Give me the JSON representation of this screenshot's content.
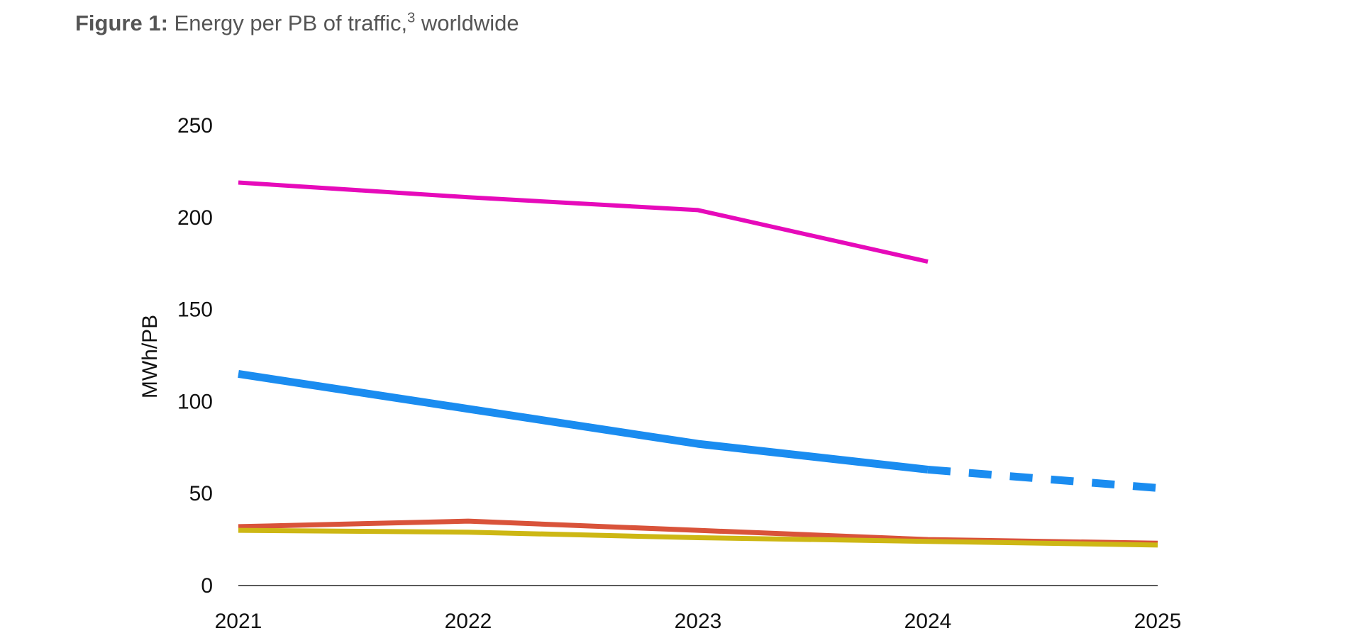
{
  "figure": {
    "label": "Figure 1:",
    "caption": "Energy per PB of traffic,",
    "footnote": "3",
    "caption_tail": "worldwide"
  },
  "chart_data": {
    "type": "line",
    "title": "",
    "xlabel": "",
    "ylabel": "MWh/PB",
    "categories": [
      "2021",
      "2022",
      "2023",
      "2024",
      "2025"
    ],
    "yticks": [
      "0",
      "50",
      "100",
      "150",
      "200",
      "250"
    ],
    "ylim": [
      0,
      250
    ],
    "grid": false,
    "legend": "none",
    "series": [
      {
        "color": "#e60aba",
        "width": 6,
        "segments": [
          {
            "style": "solid",
            "points": [
              [
                "2021",
                219
              ],
              [
                "2022",
                211
              ],
              [
                "2023",
                204
              ],
              [
                "2024",
                176
              ]
            ]
          }
        ]
      },
      {
        "color": "#1a8cf0",
        "width": 11,
        "segments": [
          {
            "style": "solid",
            "points": [
              [
                "2021",
                115
              ],
              [
                "2022",
                96
              ],
              [
                "2023",
                77
              ],
              [
                "2024",
                63
              ]
            ]
          },
          {
            "style": "dashed",
            "points": [
              [
                "2024",
                63
              ],
              [
                "2025",
                53
              ]
            ]
          }
        ]
      },
      {
        "color": "#d9533a",
        "width": 7,
        "segments": [
          {
            "style": "solid",
            "points": [
              [
                "2021",
                32
              ],
              [
                "2022",
                35
              ],
              [
                "2023",
                30
              ],
              [
                "2024",
                25
              ],
              [
                "2025",
                23
              ]
            ]
          }
        ]
      },
      {
        "color": "#cdb714",
        "width": 7,
        "segments": [
          {
            "style": "solid",
            "points": [
              [
                "2021",
                30
              ],
              [
                "2022",
                29
              ],
              [
                "2023",
                26
              ],
              [
                "2024",
                24
              ],
              [
                "2025",
                22
              ]
            ]
          }
        ]
      }
    ]
  }
}
